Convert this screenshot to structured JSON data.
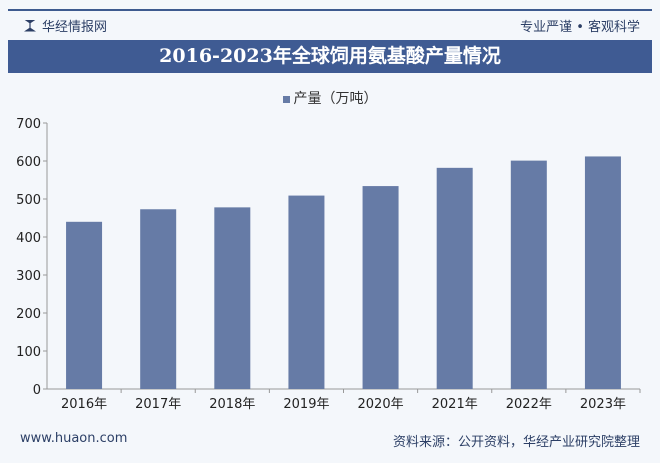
{
  "header": {
    "brand": "华经情报网",
    "slogan": "专业严谨 • 客观科学",
    "title": "2016-2023年全球饲用氨基酸产量情况"
  },
  "footer": {
    "website": "www.huaon.com",
    "source": "资料来源：公开资料，华经产业研究院整理"
  },
  "colors": {
    "bar": "#667ba6",
    "title_bg": "#3f5b93"
  },
  "chart_data": {
    "type": "bar",
    "title": "2016-2023年全球饲用氨基酸产量情况",
    "categories": [
      "2016年",
      "2017年",
      "2018年",
      "2019年",
      "2020年",
      "2021年",
      "2022年",
      "2023年"
    ],
    "series": [
      {
        "name": "产量（万吨）",
        "values": [
          440,
          473,
          478,
          509,
          534,
          582,
          601,
          612
        ]
      }
    ],
    "ylim": [
      0,
      700
    ],
    "yticks": [
      0,
      100,
      200,
      300,
      400,
      500,
      600,
      700
    ],
    "grid": false,
    "legend": "top"
  }
}
